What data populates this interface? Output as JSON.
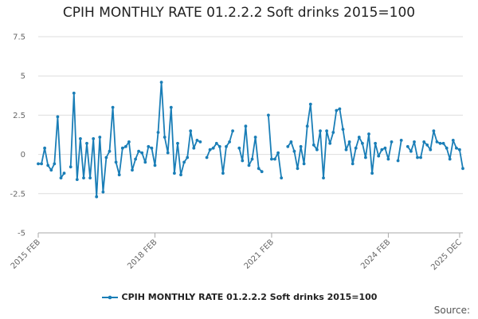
{
  "chart_data": {
    "type": "line",
    "title": "CPIH MONTHLY RATE 01.2.2.2 Soft drinks 2015=100",
    "xlabel": "",
    "ylabel": "",
    "ylim": [
      -5,
      7.5
    ],
    "yticks": [
      "-5",
      "-2.5",
      "0",
      "2.5",
      "5",
      "7.5"
    ],
    "xticks": [
      "2015 FEB",
      "2018 FEB",
      "2021 FEB",
      "2024 FEB",
      "2025 DEC"
    ],
    "x_start": "2015 FEB",
    "x_end": "2025 DEC",
    "grid": true,
    "legend_position": "bottom",
    "series": [
      {
        "name": "CPIH MONTHLY RATE 01.2.2.2 Soft drinks 2015=100",
        "color": "#1a7eb7",
        "values": [
          -0.6,
          -0.6,
          0.4,
          -0.7,
          -1.0,
          -0.6,
          2.4,
          -1.5,
          -1.2,
          null,
          -0.8,
          3.9,
          -1.6,
          1.0,
          -1.5,
          0.7,
          -1.5,
          1.0,
          -2.7,
          1.1,
          -2.4,
          -0.2,
          0.2,
          3.0,
          -0.5,
          -1.3,
          0.4,
          0.5,
          0.8,
          -1.0,
          -0.3,
          0.2,
          0.1,
          -0.5,
          0.5,
          0.4,
          -0.7,
          1.4,
          4.6,
          1.1,
          0.1,
          3.0,
          -1.2,
          0.7,
          -1.3,
          -0.5,
          -0.2,
          1.5,
          0.4,
          0.9,
          0.8,
          null,
          -0.2,
          0.3,
          0.4,
          0.7,
          0.5,
          -1.2,
          0.5,
          0.8,
          1.5,
          null,
          0.4,
          -0.4,
          1.8,
          -0.7,
          -0.3,
          1.1,
          -0.9,
          -1.1,
          null,
          2.5,
          -0.3,
          -0.3,
          0.1,
          -1.5,
          null,
          0.5,
          0.8,
          0.2,
          -0.9,
          0.5,
          -0.6,
          1.8,
          3.2,
          0.6,
          0.3,
          1.5,
          -1.5,
          1.5,
          0.7,
          1.4,
          2.8,
          2.9,
          1.6,
          0.3,
          0.8,
          -0.6,
          0.4,
          1.1,
          0.7,
          -0.2,
          1.3,
          -1.2,
          0.7,
          -0.1,
          0.3,
          0.4,
          -0.3,
          0.8,
          null,
          -0.4,
          0.9,
          null,
          0.5,
          0.2,
          0.8,
          -0.2,
          -0.2,
          0.8,
          0.6,
          0.3,
          1.5,
          0.8,
          0.7,
          0.7,
          0.4,
          -0.3,
          0.9,
          0.4,
          0.3,
          -0.9
        ]
      }
    ]
  },
  "footer": {
    "source_label": "Source:"
  }
}
